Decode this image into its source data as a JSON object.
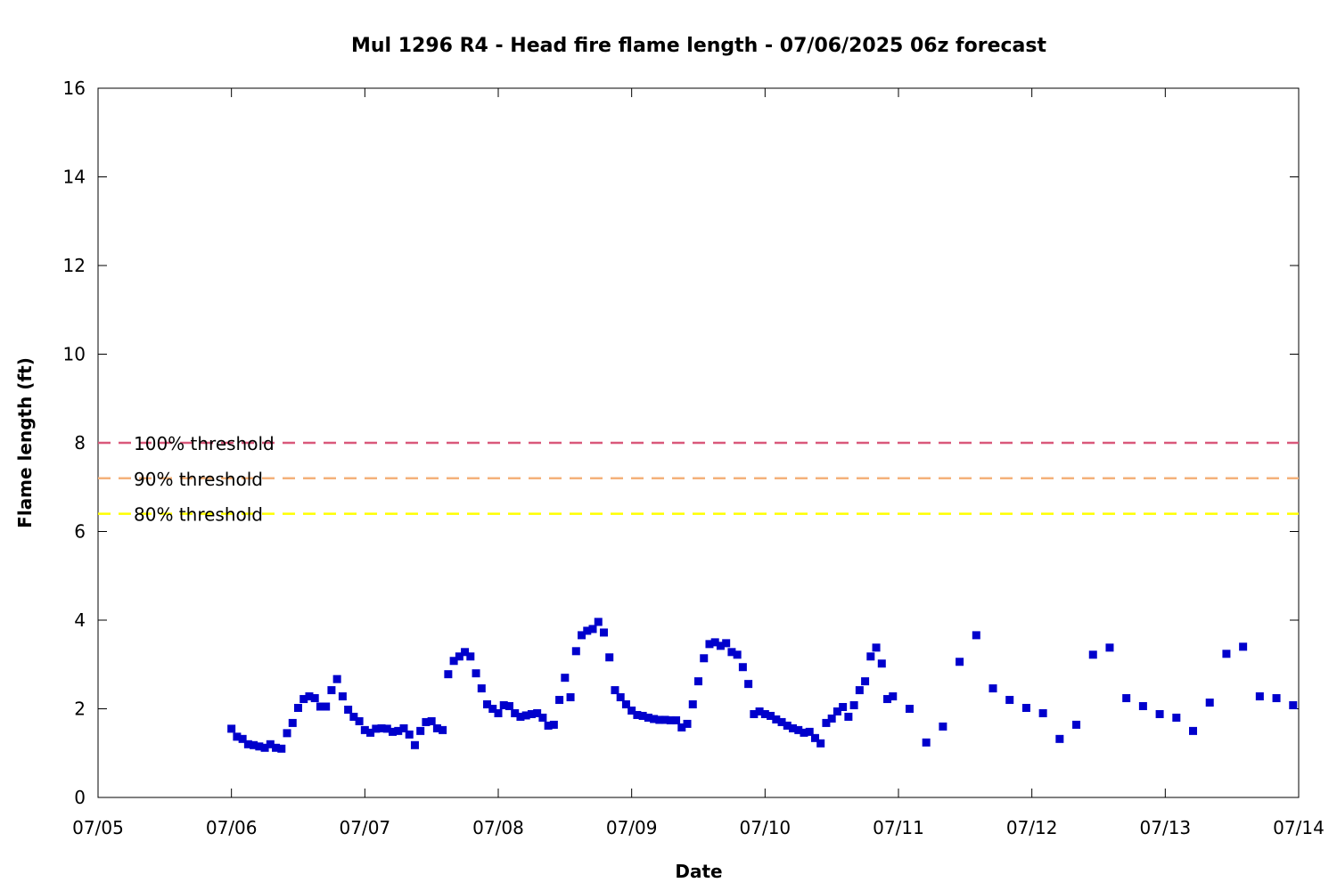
{
  "chart_data": {
    "type": "scatter",
    "title": "Mul 1296 R4 - Head fire flame length - 07/06/2025 06z forecast",
    "xlabel": "Date",
    "ylabel": "Flame length (ft)",
    "x_range": [
      "07/05",
      "07/14"
    ],
    "ylim": [
      0,
      16
    ],
    "x_ticks": [
      "07/05",
      "07/06",
      "07/07",
      "07/08",
      "07/09",
      "07/10",
      "07/11",
      "07/12",
      "07/13",
      "07/14"
    ],
    "y_ticks": [
      0,
      2,
      4,
      6,
      8,
      10,
      12,
      14,
      16
    ],
    "grid": false,
    "legend_position": "left",
    "marker_color": "#0000cc",
    "thresholds": [
      {
        "label": "100% threshold",
        "value": 8.0,
        "color": "#d9587a"
      },
      {
        "label": "90% threshold",
        "value": 7.2,
        "color": "#f4b17a"
      },
      {
        "label": "80% threshold",
        "value": 6.4,
        "color": "#ffff00"
      }
    ],
    "series": [
      {
        "x": [
          "07/06 00:00",
          "07/06 01:00",
          "07/06 02:00",
          "07/06 03:00",
          "07/06 04:00",
          "07/06 05:00",
          "07/06 06:00",
          "07/06 07:00",
          "07/06 08:00",
          "07/06 09:00",
          "07/06 10:00",
          "07/06 11:00",
          "07/06 12:00",
          "07/06 13:00",
          "07/06 14:00",
          "07/06 15:00",
          "07/06 16:00",
          "07/06 17:00",
          "07/06 18:00",
          "07/06 19:00",
          "07/06 20:00",
          "07/06 21:00",
          "07/06 22:00",
          "07/06 23:00",
          "07/07 00:00",
          "07/07 01:00",
          "07/07 02:00",
          "07/07 03:00",
          "07/07 04:00",
          "07/07 05:00",
          "07/07 06:00",
          "07/07 07:00",
          "07/07 08:00",
          "07/07 09:00",
          "07/07 10:00",
          "07/07 11:00",
          "07/07 12:00",
          "07/07 13:00",
          "07/07 14:00",
          "07/07 15:00",
          "07/07 16:00",
          "07/07 17:00",
          "07/07 18:00",
          "07/07 19:00",
          "07/07 20:00",
          "07/07 21:00",
          "07/07 22:00",
          "07/07 23:00",
          "07/08 00:00",
          "07/08 01:00",
          "07/08 02:00",
          "07/08 03:00",
          "07/08 04:00",
          "07/08 05:00",
          "07/08 06:00",
          "07/08 07:00",
          "07/08 08:00",
          "07/08 09:00",
          "07/08 10:00",
          "07/08 11:00",
          "07/08 12:00",
          "07/08 13:00",
          "07/08 14:00",
          "07/08 15:00",
          "07/08 16:00",
          "07/08 17:00",
          "07/08 18:00",
          "07/08 19:00",
          "07/08 20:00",
          "07/08 21:00",
          "07/08 22:00",
          "07/08 23:00",
          "07/09 00:00",
          "07/09 01:00",
          "07/09 02:00",
          "07/09 03:00",
          "07/09 04:00",
          "07/09 05:00",
          "07/09 06:00",
          "07/09 07:00",
          "07/09 08:00",
          "07/09 09:00",
          "07/09 10:00",
          "07/09 11:00",
          "07/09 12:00",
          "07/09 13:00",
          "07/09 14:00",
          "07/09 15:00",
          "07/09 16:00",
          "07/09 17:00",
          "07/09 18:00",
          "07/09 19:00",
          "07/09 20:00",
          "07/09 21:00",
          "07/09 22:00",
          "07/09 23:00",
          "07/10 00:00",
          "07/10 01:00",
          "07/10 02:00",
          "07/10 03:00",
          "07/10 04:00",
          "07/10 05:00",
          "07/10 06:00",
          "07/10 07:00",
          "07/10 08:00",
          "07/10 09:00",
          "07/10 10:00",
          "07/10 11:00",
          "07/10 12:00",
          "07/10 13:00",
          "07/10 14:00",
          "07/10 15:00",
          "07/10 16:00",
          "07/10 17:00",
          "07/10 18:00",
          "07/10 19:00",
          "07/10 20:00",
          "07/10 21:00",
          "07/10 22:00",
          "07/10 23:00",
          "07/11 02:00",
          "07/11 05:00",
          "07/11 08:00",
          "07/11 11:00",
          "07/11 14:00",
          "07/11 17:00",
          "07/11 20:00",
          "07/11 23:00",
          "07/12 02:00",
          "07/12 05:00",
          "07/12 08:00",
          "07/12 11:00",
          "07/12 14:00",
          "07/12 17:00",
          "07/12 20:00",
          "07/12 23:00",
          "07/13 02:00",
          "07/13 05:00",
          "07/13 08:00",
          "07/13 11:00",
          "07/13 14:00",
          "07/13 17:00",
          "07/13 20:00",
          "07/13 23:00"
        ],
        "y": [
          1.55,
          1.37,
          1.32,
          1.2,
          1.18,
          1.15,
          1.12,
          1.2,
          1.12,
          1.1,
          1.45,
          1.68,
          2.02,
          2.22,
          2.28,
          2.24,
          2.05,
          2.05,
          2.42,
          2.67,
          2.28,
          1.98,
          1.82,
          1.72,
          1.52,
          1.46,
          1.55,
          1.56,
          1.55,
          1.48,
          1.5,
          1.56,
          1.42,
          1.18,
          1.5,
          1.7,
          1.72,
          1.56,
          1.52,
          2.78,
          3.08,
          3.18,
          3.28,
          3.18,
          2.8,
          2.46,
          2.1,
          2.0,
          1.9,
          2.08,
          2.06,
          1.9,
          1.82,
          1.85,
          1.88,
          1.9,
          1.8,
          1.62,
          1.64,
          2.2,
          2.7,
          2.26,
          3.3,
          3.66,
          3.76,
          3.8,
          3.96,
          3.72,
          3.16,
          2.42,
          2.26,
          2.1,
          1.96,
          1.86,
          1.84,
          1.8,
          1.77,
          1.75,
          1.75,
          1.74,
          1.74,
          1.58,
          1.66,
          2.1,
          2.62,
          3.14,
          3.46,
          3.5,
          3.42,
          3.48,
          3.28,
          3.22,
          2.94,
          2.56,
          1.88,
          1.94,
          1.88,
          1.84,
          1.76,
          1.7,
          1.62,
          1.56,
          1.52,
          1.46,
          1.48,
          1.34,
          1.22,
          1.68,
          1.78,
          1.94,
          2.04,
          1.82,
          2.08,
          2.42,
          2.62,
          3.18,
          3.38,
          3.02,
          2.22,
          2.28,
          2.0,
          1.24,
          1.6,
          3.06,
          3.66,
          2.46,
          2.2,
          2.02,
          1.9,
          1.32,
          1.64,
          3.22,
          3.38,
          2.24,
          2.06,
          1.88,
          1.8,
          1.5,
          2.14,
          3.24,
          3.4,
          2.28,
          2.24,
          2.08
        ]
      }
    ]
  }
}
